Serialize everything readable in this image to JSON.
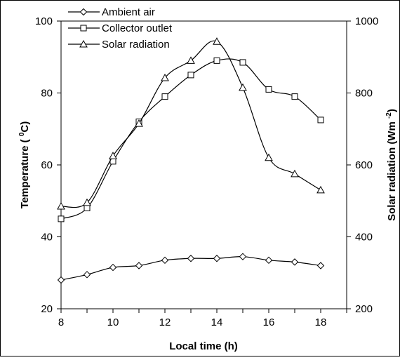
{
  "chart_data": {
    "type": "line",
    "x": [
      8,
      9,
      10,
      11,
      12,
      13,
      14,
      15,
      16,
      17,
      18
    ],
    "xlabel": "Local time (h)",
    "xlim": [
      8,
      19
    ],
    "x_ticks": [
      "8",
      "10",
      "12",
      "14",
      "16",
      "18"
    ],
    "ylabel_left_main": "Temperature ( ",
    "ylabel_left_sup": "0",
    "ylabel_left_end": "C)",
    "ylim_left": [
      20,
      100
    ],
    "y_ticks_left": [
      "20",
      "40",
      "60",
      "80",
      "100"
    ],
    "ylabel_right_main": "Solar radiation (Wm ",
    "ylabel_right_sup": "-2",
    "ylabel_right_end": ")",
    "ylim_right": [
      200,
      1000
    ],
    "y_ticks_right": [
      "200",
      "400",
      "600",
      "800",
      "1000"
    ],
    "grid": false,
    "legend_position": "top-left",
    "series": [
      {
        "name": "Ambient air",
        "marker": "diamond",
        "axis": "left",
        "values": [
          28.0,
          29.5,
          31.5,
          32.0,
          33.5,
          34.0,
          34.0,
          34.5,
          33.5,
          33.0,
          32.0
        ]
      },
      {
        "name": "Collector outlet",
        "marker": "square",
        "axis": "left",
        "values": [
          45.0,
          48.0,
          61.0,
          72.0,
          79.0,
          85.0,
          89.0,
          88.5,
          81.0,
          79.0,
          72.5
        ]
      },
      {
        "name": "Solar radiation",
        "marker": "triangle",
        "axis": "right",
        "values": [
          485,
          495,
          625,
          715,
          842,
          890,
          943,
          815,
          620,
          575,
          530
        ]
      }
    ]
  }
}
